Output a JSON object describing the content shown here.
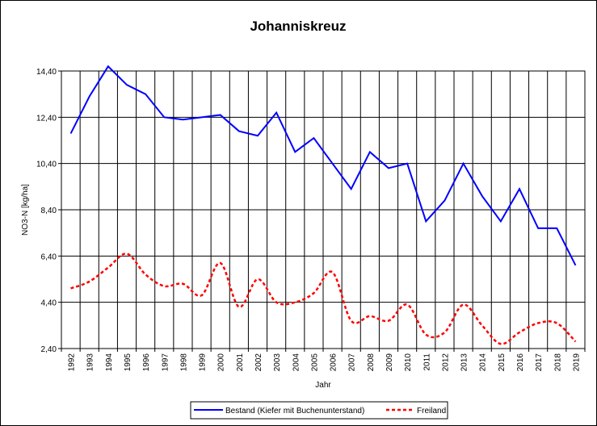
{
  "chart_data": {
    "type": "line",
    "title": "Johanniskreuz",
    "xlabel": "Jahr",
    "ylabel": "NO3-N [kg/ha]",
    "x": [
      "1992",
      "1993",
      "1994",
      "1995",
      "1996",
      "1997",
      "1998",
      "1999",
      "2000",
      "2001",
      "2002",
      "2003",
      "2004",
      "2005",
      "2006",
      "2007",
      "2008",
      "2009",
      "2010",
      "2011",
      "2012",
      "2013",
      "2014",
      "2015",
      "2016",
      "2017",
      "2018",
      "2019"
    ],
    "yticks": [
      "2,40",
      "4,40",
      "6,40",
      "8,40",
      "10,40",
      "12,40",
      "14,40"
    ],
    "ylim": [
      2.4,
      14.4
    ],
    "grid": true,
    "legend_position": "bottom",
    "series": [
      {
        "name": "Bestand (Kiefer mit Buchenunterstand)",
        "color": "#0000ff",
        "style": "solid",
        "values": [
          11.7,
          13.3,
          14.6,
          13.8,
          13.4,
          12.4,
          12.3,
          12.4,
          12.5,
          11.8,
          11.6,
          12.6,
          10.9,
          11.5,
          10.4,
          9.3,
          10.9,
          10.2,
          10.4,
          7.9,
          8.8,
          10.4,
          9.0,
          7.9,
          9.3,
          7.6,
          7.6,
          6.0
        ]
      },
      {
        "name": "Freiland",
        "color": "#ff0000",
        "style": "dashed",
        "values": [
          5.0,
          5.3,
          5.9,
          6.5,
          5.6,
          5.1,
          5.2,
          4.7,
          6.1,
          4.2,
          5.4,
          4.4,
          4.4,
          4.8,
          5.7,
          3.6,
          3.8,
          3.6,
          4.3,
          3.0,
          3.1,
          4.3,
          3.4,
          2.6,
          3.1,
          3.5,
          3.5,
          2.7
        ]
      }
    ]
  }
}
